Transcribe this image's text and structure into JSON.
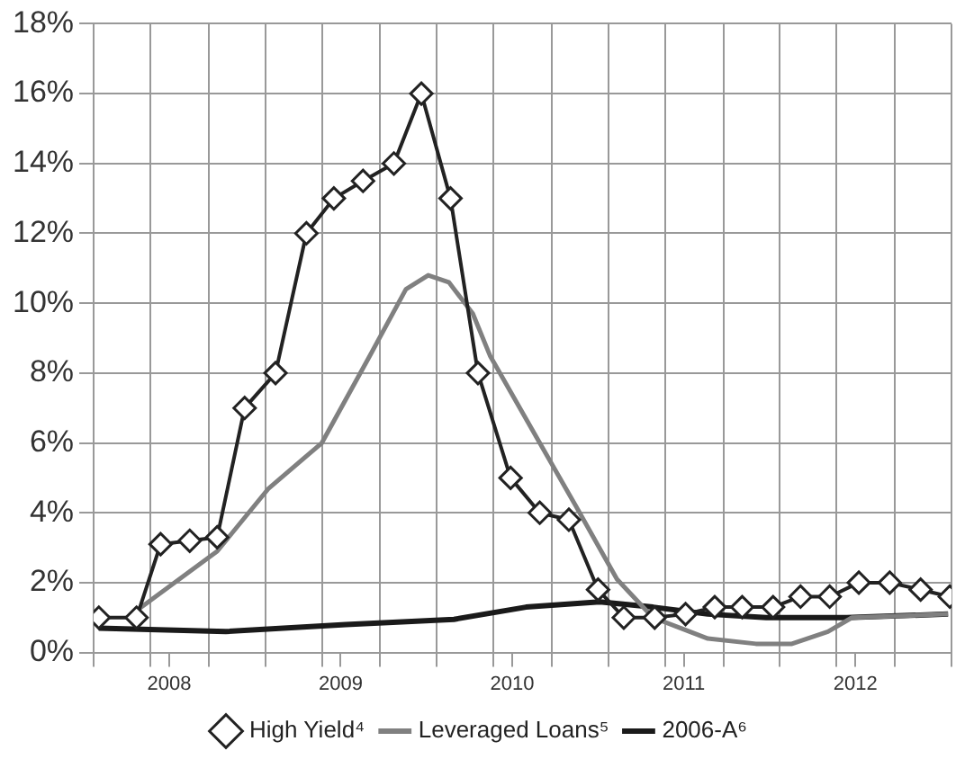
{
  "chart_data": {
    "type": "line",
    "xlim": [
      2008.06,
      2013.06
    ],
    "xticks": [
      {
        "value": 2008.06,
        "label": null
      },
      {
        "value": 2008.39,
        "label": null
      },
      {
        "value": 2008.5,
        "label": "2008"
      },
      {
        "value": 2008.73,
        "label": null
      },
      {
        "value": 2009.06,
        "label": null
      },
      {
        "value": 2009.39,
        "label": null
      },
      {
        "value": 2009.5,
        "label": "2009"
      },
      {
        "value": 2009.73,
        "label": null
      },
      {
        "value": 2010.06,
        "label": null
      },
      {
        "value": 2010.39,
        "label": null
      },
      {
        "value": 2010.5,
        "label": "2010"
      },
      {
        "value": 2010.73,
        "label": null
      },
      {
        "value": 2011.06,
        "label": null
      },
      {
        "value": 2011.39,
        "label": null
      },
      {
        "value": 2011.5,
        "label": "2011"
      },
      {
        "value": 2011.73,
        "label": null
      },
      {
        "value": 2012.06,
        "label": null
      },
      {
        "value": 2012.39,
        "label": null
      },
      {
        "value": 2012.5,
        "label": "2012"
      },
      {
        "value": 2012.73,
        "label": null
      },
      {
        "value": 2013.06,
        "label": null
      }
    ],
    "ylim": [
      0,
      18
    ],
    "yticks": [
      {
        "value": 0,
        "label": "0%"
      },
      {
        "value": 2,
        "label": "2%"
      },
      {
        "value": 4,
        "label": "4%"
      },
      {
        "value": 6,
        "label": "6%"
      },
      {
        "value": 8,
        "label": "8%"
      },
      {
        "value": 10,
        "label": "10%"
      },
      {
        "value": 12,
        "label": "12%"
      },
      {
        "value": 14,
        "label": "14%"
      },
      {
        "value": 16,
        "label": "16%"
      },
      {
        "value": 18,
        "label": "18%"
      }
    ],
    "grid": true,
    "legend": "bottom",
    "series": [
      {
        "name": "High Yield⁴",
        "color": "#222222",
        "marker": "diamond",
        "x": [
          2008.09,
          2008.31,
          2008.45,
          2008.62,
          2008.78,
          2008.94,
          2009.12,
          2009.3,
          2009.46,
          2009.63,
          2009.81,
          2009.97,
          2010.14,
          2010.3,
          2010.49,
          2010.66,
          2010.83,
          2011.0,
          2011.15,
          2011.33,
          2011.51,
          2011.68,
          2011.84,
          2012.02,
          2012.18,
          2012.35,
          2012.52,
          2012.7,
          2012.88,
          2013.05
        ],
        "values": [
          1.0,
          1.0,
          3.1,
          3.2,
          3.3,
          7.0,
          8.0,
          12.0,
          13.0,
          13.5,
          14.0,
          16.0,
          13.0,
          8.0,
          5.0,
          4.0,
          3.8,
          1.8,
          1.0,
          1.0,
          1.1,
          1.3,
          1.3,
          1.3,
          1.6,
          1.6,
          2.0,
          2.0,
          1.8,
          1.6
        ]
      },
      {
        "name": "Leveraged Loans⁵",
        "color": "#808080",
        "marker": "none",
        "x": [
          2008.31,
          2008.78,
          2009.08,
          2009.39,
          2009.67,
          2009.88,
          2010.01,
          2010.13,
          2010.27,
          2010.37,
          2010.66,
          2010.87,
          2011.11,
          2011.32,
          2011.64,
          2011.92,
          2012.13,
          2012.34,
          2012.48,
          2013.04
        ],
        "values": [
          1.2,
          2.9,
          4.7,
          6.0,
          8.5,
          10.4,
          10.8,
          10.6,
          9.7,
          8.5,
          6.0,
          4.2,
          2.1,
          1.0,
          0.4,
          0.25,
          0.25,
          0.6,
          1.0,
          1.1
        ]
      },
      {
        "name": "2006-A⁶",
        "color": "#1a1a1a",
        "marker": "none",
        "x": [
          2008.09,
          2008.83,
          2009.53,
          2010.16,
          2010.58,
          2011.01,
          2011.32,
          2011.64,
          2011.98,
          2012.45,
          2013.04
        ],
        "values": [
          0.7,
          0.6,
          0.8,
          0.95,
          1.3,
          1.45,
          1.3,
          1.1,
          1.0,
          1.0,
          1.1
        ]
      }
    ]
  }
}
